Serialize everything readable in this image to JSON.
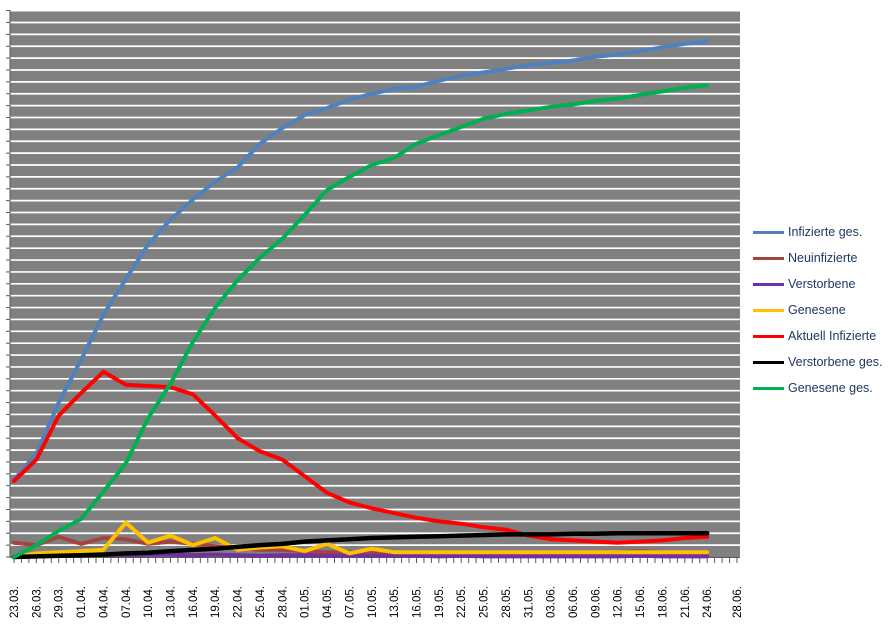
{
  "page": {
    "background": "#FFFFFF",
    "description": "Spreadsheet-style line chart of COVID-19 case counts with gray plot area, white horizontal gridlines, date axis and right-hand legend"
  },
  "chart_data": {
    "type": "line",
    "title": "",
    "xlabel": "",
    "ylabel": "",
    "y_axis": {
      "labels_visible": false,
      "units": "gridline units (y-axis numeric labels not visible in image)",
      "min": 0,
      "max": 46,
      "gridline_step": 1
    },
    "x_axis": {
      "tick_every_days": 1,
      "label_every_days": 3,
      "days_total": 97
    },
    "grid": "horizontal white lines on gray plot background",
    "legend_position": "right",
    "categories": [
      "23.03.",
      "26.03.",
      "29.03.",
      "01.04.",
      "04.04.",
      "07.04.",
      "10.04.",
      "13.04.",
      "16.04.",
      "19.04.",
      "22.04.",
      "25.04.",
      "28.04.",
      "01.05.",
      "04.05.",
      "07.05.",
      "10.05.",
      "13.05.",
      "16.05.",
      "19.05.",
      "22.05.",
      "25.05.",
      "28.05.",
      "31.05.",
      "03.06.",
      "06.06.",
      "09.06.",
      "12.06.",
      "15.06.",
      "18.06.",
      "21.06.",
      "24.06.",
      "28.06."
    ],
    "category_day_offsets": [
      0,
      3,
      6,
      9,
      12,
      15,
      18,
      21,
      24,
      27,
      30,
      33,
      36,
      39,
      42,
      45,
      48,
      51,
      54,
      57,
      60,
      63,
      66,
      69,
      72,
      75,
      78,
      81,
      84,
      87,
      90,
      93,
      97
    ],
    "series": [
      {
        "name": "Infizierte ges.",
        "color": "#4F81BD",
        "width": 4,
        "values": [
          6.5,
          8.7,
          13.0,
          16.6,
          20.4,
          23.4,
          26.3,
          28.4,
          30.1,
          31.6,
          32.8,
          34.8,
          36.1,
          37.2,
          37.8,
          38.5,
          39.0,
          39.4,
          39.6,
          40.1,
          40.5,
          40.8,
          41.1,
          41.4,
          41.6,
          41.8,
          42.1,
          42.3,
          42.6,
          42.9,
          43.2,
          43.4,
          null
        ]
      },
      {
        "name": "Neuinfizierte",
        "color": "#A5443F",
        "width": 4,
        "values": [
          1.2,
          1.0,
          1.7,
          1.1,
          1.6,
          1.5,
          1.1,
          1.3,
          1.1,
          0.9,
          0.8,
          0.6,
          0.6,
          0.5,
          0.4,
          0.4,
          0.3,
          0.3,
          0.3,
          0.3,
          0.25,
          0.25,
          0.25,
          0.2,
          0.2,
          0.2,
          0.3,
          0.4,
          0.5,
          0.4,
          0.3,
          0.3,
          null
        ]
      },
      {
        "name": "Verstorbene",
        "color": "#7030A0",
        "width": 4,
        "values": [
          0,
          0.05,
          0.1,
          0.15,
          0.2,
          0.15,
          0.2,
          0.2,
          0.15,
          0.2,
          0.15,
          0.1,
          0.15,
          0.15,
          0.1,
          0.1,
          0.1,
          0.1,
          0.1,
          0.05,
          0.1,
          0.05,
          0.05,
          0.05,
          0.05,
          0.05,
          0.05,
          0.05,
          0.1,
          0.05,
          0.05,
          0.05,
          null
        ]
      },
      {
        "name": "Genesene",
        "color": "#FFC000",
        "width": 4,
        "values": [
          0,
          0.3,
          0.4,
          0.5,
          0.6,
          2.9,
          1.2,
          1.8,
          1.0,
          1.6,
          0.6,
          0.8,
          0.9,
          0.5,
          1.1,
          0.3,
          0.7,
          0.4,
          0.4,
          0.4,
          0.4,
          0.4,
          0.4,
          0.4,
          0.4,
          0.4,
          0.4,
          0.4,
          0.4,
          0.4,
          0.4,
          0.4,
          null
        ]
      },
      {
        "name": "Aktuell Infizierte",
        "color": "#FF0000",
        "width": 4,
        "values": [
          6.4,
          8.2,
          11.9,
          13.8,
          15.6,
          14.5,
          14.4,
          14.3,
          13.7,
          11.9,
          10.0,
          8.9,
          8.2,
          6.8,
          5.4,
          4.6,
          4.1,
          3.7,
          3.3,
          3.0,
          2.8,
          2.5,
          2.3,
          1.8,
          1.5,
          1.4,
          1.3,
          1.2,
          1.3,
          1.4,
          1.6,
          1.7,
          null
        ]
      },
      {
        "name": "Verstorbene ges.",
        "color": "#000000",
        "width": 4.5,
        "values": [
          0,
          0.05,
          0.1,
          0.15,
          0.2,
          0.3,
          0.35,
          0.5,
          0.6,
          0.7,
          0.85,
          1.0,
          1.1,
          1.3,
          1.4,
          1.5,
          1.6,
          1.65,
          1.7,
          1.75,
          1.8,
          1.85,
          1.9,
          1.9,
          1.9,
          1.95,
          1.95,
          2.0,
          2.0,
          2.0,
          2.0,
          2.0,
          null
        ]
      },
      {
        "name": "Genesene ges.",
        "color": "#00B050",
        "width": 4,
        "values": [
          0,
          1.0,
          2.2,
          3.2,
          5.5,
          7.9,
          11.7,
          14.6,
          18.1,
          21.0,
          23.3,
          25.2,
          26.8,
          28.8,
          30.9,
          32.0,
          33.0,
          33.6,
          34.8,
          35.5,
          36.2,
          36.9,
          37.3,
          37.6,
          37.9,
          38.1,
          38.4,
          38.6,
          38.9,
          39.2,
          39.5,
          39.7,
          null
        ]
      }
    ],
    "colors": {
      "plot_background": "#808080",
      "gridline": "#FFFFFF",
      "axis": "#595959",
      "x_tick_label": "#000000",
      "legend_text": "#1F3864"
    }
  }
}
